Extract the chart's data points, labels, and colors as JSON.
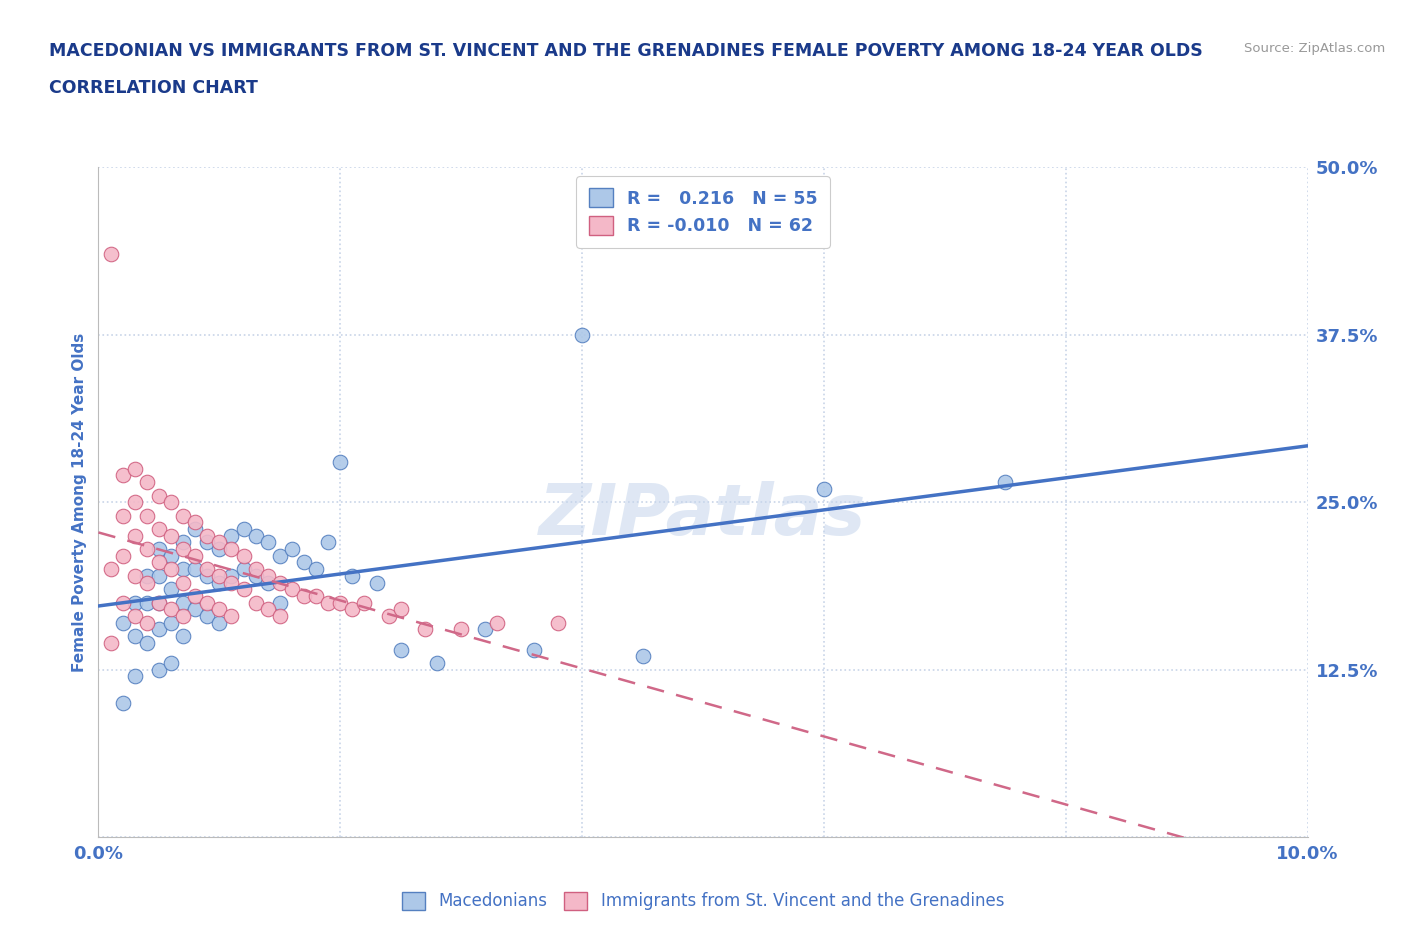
{
  "title_line1": "MACEDONIAN VS IMMIGRANTS FROM ST. VINCENT AND THE GRENADINES FEMALE POVERTY AMONG 18-24 YEAR OLDS",
  "title_line2": "CORRELATION CHART",
  "source": "Source: ZipAtlas.com",
  "ylabel": "Female Poverty Among 18-24 Year Olds",
  "xlim": [
    0.0,
    0.1
  ],
  "ylim": [
    0.0,
    0.5
  ],
  "xticks": [
    0.0,
    0.02,
    0.04,
    0.06,
    0.08,
    0.1
  ],
  "yticks": [
    0.0,
    0.125,
    0.25,
    0.375,
    0.5
  ],
  "xtick_labels": [
    "0.0%",
    "",
    "",
    "",
    "",
    "10.0%"
  ],
  "ytick_labels": [
    "",
    "12.5%",
    "25.0%",
    "37.5%",
    "50.0%"
  ],
  "watermark": "ZIPatlas",
  "blue_R": 0.216,
  "blue_N": 55,
  "pink_R": -0.01,
  "pink_N": 62,
  "blue_color": "#adc8e8",
  "pink_color": "#f4b8c8",
  "blue_edge_color": "#5580c0",
  "pink_edge_color": "#d06080",
  "blue_line_color": "#4472c4",
  "pink_line_color": "#d06888",
  "grid_color": "#c8d4e8",
  "title_color": "#1a3a8a",
  "axis_label_color": "#4472c4",
  "tick_label_color": "#4472c4",
  "blue_scatter_x": [
    0.002,
    0.002,
    0.003,
    0.003,
    0.003,
    0.004,
    0.004,
    0.004,
    0.005,
    0.005,
    0.005,
    0.005,
    0.005,
    0.006,
    0.006,
    0.006,
    0.006,
    0.007,
    0.007,
    0.007,
    0.007,
    0.008,
    0.008,
    0.008,
    0.009,
    0.009,
    0.009,
    0.01,
    0.01,
    0.01,
    0.011,
    0.011,
    0.012,
    0.012,
    0.013,
    0.013,
    0.014,
    0.014,
    0.015,
    0.015,
    0.016,
    0.017,
    0.018,
    0.019,
    0.02,
    0.021,
    0.023,
    0.025,
    0.028,
    0.032,
    0.036,
    0.04,
    0.045,
    0.06,
    0.075
  ],
  "blue_scatter_y": [
    0.16,
    0.1,
    0.175,
    0.15,
    0.12,
    0.195,
    0.175,
    0.145,
    0.215,
    0.195,
    0.175,
    0.155,
    0.125,
    0.21,
    0.185,
    0.16,
    0.13,
    0.22,
    0.2,
    0.175,
    0.15,
    0.23,
    0.2,
    0.17,
    0.22,
    0.195,
    0.165,
    0.215,
    0.19,
    0.16,
    0.225,
    0.195,
    0.23,
    0.2,
    0.225,
    0.195,
    0.22,
    0.19,
    0.21,
    0.175,
    0.215,
    0.205,
    0.2,
    0.22,
    0.28,
    0.195,
    0.19,
    0.14,
    0.13,
    0.155,
    0.14,
    0.375,
    0.135,
    0.26,
    0.265
  ],
  "pink_scatter_x": [
    0.001,
    0.001,
    0.001,
    0.002,
    0.002,
    0.002,
    0.002,
    0.003,
    0.003,
    0.003,
    0.003,
    0.003,
    0.004,
    0.004,
    0.004,
    0.004,
    0.004,
    0.005,
    0.005,
    0.005,
    0.005,
    0.006,
    0.006,
    0.006,
    0.006,
    0.007,
    0.007,
    0.007,
    0.007,
    0.008,
    0.008,
    0.008,
    0.009,
    0.009,
    0.009,
    0.01,
    0.01,
    0.01,
    0.011,
    0.011,
    0.011,
    0.012,
    0.012,
    0.013,
    0.013,
    0.014,
    0.014,
    0.015,
    0.015,
    0.016,
    0.017,
    0.018,
    0.019,
    0.02,
    0.021,
    0.022,
    0.024,
    0.025,
    0.027,
    0.03,
    0.033,
    0.038
  ],
  "pink_scatter_y": [
    0.435,
    0.2,
    0.145,
    0.27,
    0.24,
    0.21,
    0.175,
    0.275,
    0.25,
    0.225,
    0.195,
    0.165,
    0.265,
    0.24,
    0.215,
    0.19,
    0.16,
    0.255,
    0.23,
    0.205,
    0.175,
    0.25,
    0.225,
    0.2,
    0.17,
    0.24,
    0.215,
    0.19,
    0.165,
    0.235,
    0.21,
    0.18,
    0.225,
    0.2,
    0.175,
    0.22,
    0.195,
    0.17,
    0.215,
    0.19,
    0.165,
    0.21,
    0.185,
    0.2,
    0.175,
    0.195,
    0.17,
    0.19,
    0.165,
    0.185,
    0.18,
    0.18,
    0.175,
    0.175,
    0.17,
    0.175,
    0.165,
    0.17,
    0.155,
    0.155,
    0.16,
    0.16
  ]
}
